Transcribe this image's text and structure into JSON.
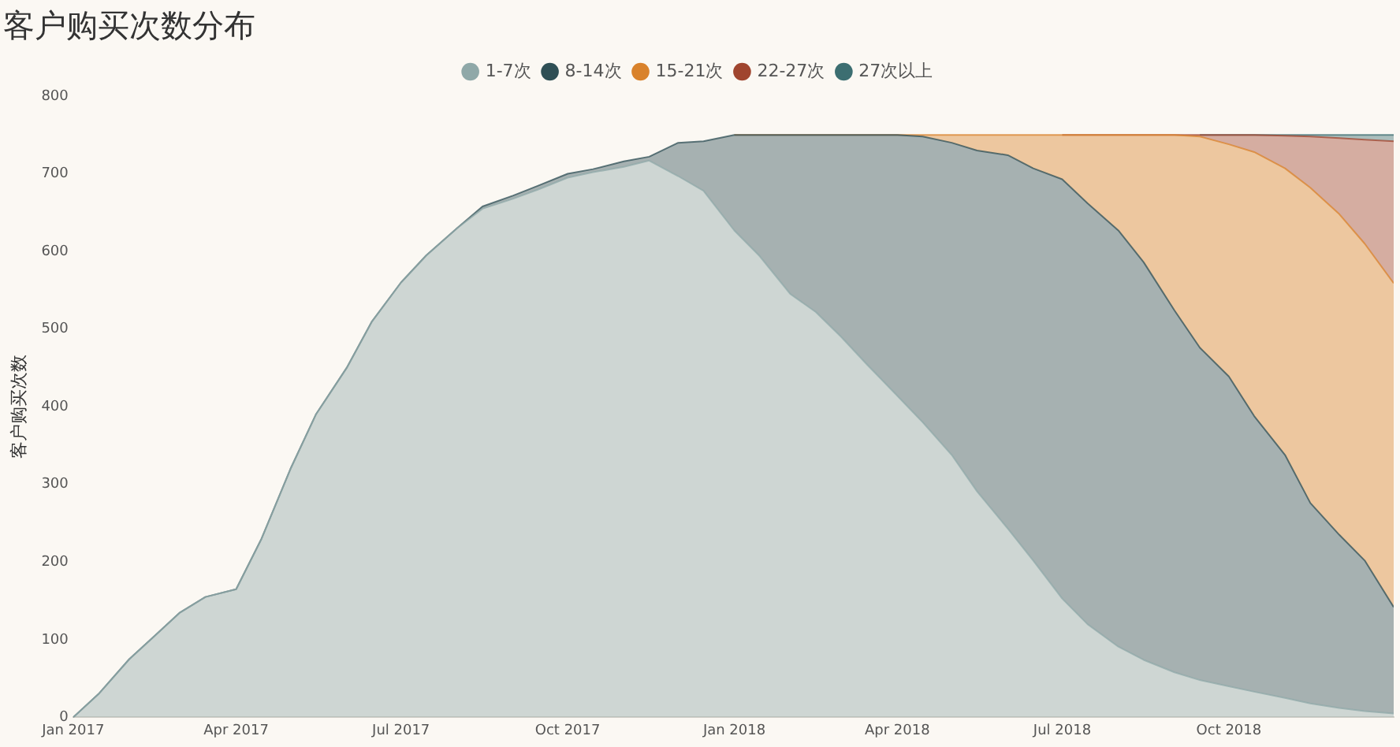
{
  "chart_data": {
    "type": "area",
    "title": "客户购买次数分布",
    "ylabel": "客户购买次数",
    "stacked": true,
    "legend": "top",
    "marker": "none",
    "x": [
      "2017-01-01",
      "2017-01-15",
      "2017-02-01",
      "2017-02-15",
      "2017-03-01",
      "2017-03-15",
      "2017-04-01",
      "2017-04-15",
      "2017-05-01",
      "2017-05-15",
      "2017-06-01",
      "2017-06-15",
      "2017-07-01",
      "2017-07-15",
      "2017-08-01",
      "2017-08-15",
      "2017-09-01",
      "2017-09-15",
      "2017-10-01",
      "2017-10-15",
      "2017-11-01",
      "2017-11-15",
      "2017-12-01",
      "2017-12-15",
      "2018-01-01",
      "2018-01-15",
      "2018-02-01",
      "2018-02-15",
      "2018-03-01",
      "2018-03-15",
      "2018-04-01",
      "2018-04-15",
      "2018-05-01",
      "2018-05-15",
      "2018-06-01",
      "2018-06-15",
      "2018-07-01",
      "2018-07-15",
      "2018-08-01",
      "2018-08-15",
      "2018-09-01",
      "2018-09-15",
      "2018-10-01",
      "2018-10-15",
      "2018-11-01",
      "2018-11-15",
      "2018-12-01",
      "2018-12-15",
      "2018-12-31"
    ],
    "xlim": [
      "2017-01-01",
      "2018-12-31"
    ],
    "xticks": [
      {
        "value": "2017-01-01",
        "label": "Jan 2017"
      },
      {
        "value": "2017-04-01",
        "label": "Apr 2017"
      },
      {
        "value": "2017-07-01",
        "label": "Jul 2017"
      },
      {
        "value": "2017-10-01",
        "label": "Oct 2017"
      },
      {
        "value": "2018-01-01",
        "label": "Jan 2018"
      },
      {
        "value": "2018-04-01",
        "label": "Apr 2018"
      },
      {
        "value": "2018-07-01",
        "label": "Jul 2018"
      },
      {
        "value": "2018-10-01",
        "label": "Oct 2018"
      }
    ],
    "ylim": [
      0,
      800
    ],
    "yticks": [
      0,
      100,
      200,
      300,
      400,
      500,
      600,
      700,
      800
    ],
    "series": [
      {
        "name": "1-7次",
        "color": "#8fa8a8",
        "values": [
          0,
          30,
          75,
          105,
          135,
          155,
          165,
          230,
          320,
          390,
          450,
          510,
          560,
          595,
          630,
          655,
          668,
          680,
          695,
          702,
          709,
          717,
          697,
          678,
          627,
          594,
          545,
          522,
          490,
          455,
          414,
          380,
          338,
          291,
          243,
          202,
          153,
          120,
          91,
          74,
          58,
          48,
          40,
          33,
          25,
          18,
          12,
          8,
          5
        ]
      },
      {
        "name": "8-14次",
        "color": "#2f4f55",
        "values": [
          0,
          0,
          0,
          0,
          0,
          0,
          0,
          0,
          0,
          0,
          0,
          0,
          0,
          0,
          0,
          3,
          4,
          5,
          5,
          4,
          7,
          5,
          43,
          64,
          123,
          156,
          205,
          228,
          260,
          295,
          336,
          368,
          402,
          439,
          481,
          505,
          540,
          542,
          536,
          512,
          466,
          428,
          399,
          355,
          313,
          258,
          223,
          194,
          137
        ]
      },
      {
        "name": "15-21次",
        "color": "#d9822b",
        "values": [
          null,
          null,
          null,
          null,
          null,
          null,
          null,
          null,
          null,
          null,
          null,
          null,
          null,
          null,
          null,
          null,
          null,
          null,
          null,
          null,
          null,
          null,
          null,
          null,
          0,
          0,
          0,
          0,
          0,
          0,
          0,
          2,
          10,
          20,
          26,
          43,
          57,
          88,
          123,
          164,
          226,
          272,
          299,
          340,
          369,
          406,
          413,
          408,
          417
        ]
      },
      {
        "name": "22-27次",
        "color": "#a0452f",
        "values": [
          null,
          null,
          null,
          null,
          null,
          null,
          null,
          null,
          null,
          null,
          null,
          null,
          null,
          null,
          null,
          null,
          null,
          null,
          null,
          null,
          null,
          null,
          null,
          null,
          null,
          null,
          null,
          null,
          null,
          null,
          null,
          null,
          null,
          null,
          null,
          null,
          0,
          0,
          0,
          0,
          0,
          2,
          12,
          22,
          42,
          66,
          98,
          134,
          183
        ]
      },
      {
        "name": "27次以上",
        "color": "#3c6e71",
        "values": [
          null,
          null,
          null,
          null,
          null,
          null,
          null,
          null,
          null,
          null,
          null,
          null,
          null,
          null,
          null,
          null,
          null,
          null,
          null,
          null,
          null,
          null,
          null,
          null,
          null,
          null,
          null,
          null,
          null,
          null,
          null,
          null,
          null,
          null,
          null,
          null,
          null,
          null,
          null,
          null,
          null,
          0,
          0,
          0,
          1,
          2,
          4,
          6,
          8
        ]
      }
    ]
  }
}
